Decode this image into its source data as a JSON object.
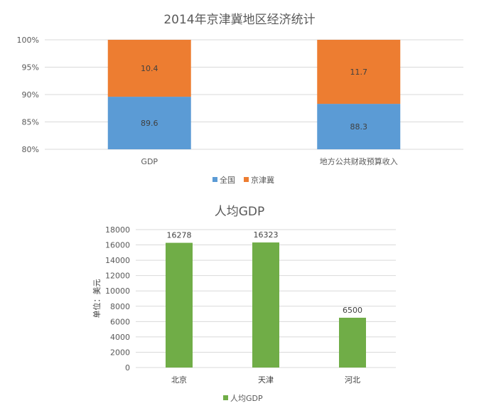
{
  "chart_data": [
    {
      "type": "bar",
      "stacked": "percent",
      "title": "2014年京津冀地区经济统计",
      "categories": [
        "GDP",
        "地方公共财政预算收入"
      ],
      "series": [
        {
          "name": "全国",
          "values": [
            89.6,
            88.3
          ],
          "color": "#5b9bd5"
        },
        {
          "name": "京津冀",
          "values": [
            10.4,
            11.7
          ],
          "color": "#ed7d31"
        }
      ],
      "ylim": [
        80,
        100
      ],
      "yticks": [
        "80%",
        "85%",
        "90%",
        "95%",
        "100%"
      ],
      "grid": true,
      "legend": "bottom"
    },
    {
      "type": "bar",
      "title": "人均GDP",
      "categories": [
        "北京",
        "天津",
        "河北"
      ],
      "series": [
        {
          "name": "人均GDP",
          "values": [
            16278,
            16323,
            6500
          ],
          "color": "#70ad47"
        }
      ],
      "ylabel": "单位：美元",
      "ylim": [
        0,
        18000
      ],
      "yticks": [
        "0",
        "2000",
        "4000",
        "6000",
        "8000",
        "10000",
        "12000",
        "14000",
        "16000",
        "18000"
      ],
      "grid": true,
      "legend": "bottom"
    }
  ]
}
